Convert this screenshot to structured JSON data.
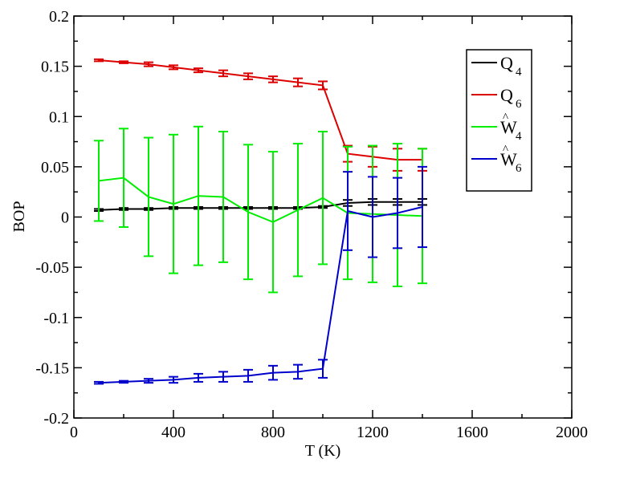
{
  "chart_data": {
    "type": "line",
    "xlabel": "T (K)",
    "ylabel": "BOP",
    "xlim": [
      0,
      2000
    ],
    "ylim": [
      -0.2,
      0.2
    ],
    "x_ticks": [
      0,
      400,
      800,
      1200,
      1600,
      2000
    ],
    "x_tick_labels": [
      "0",
      "400",
      "800",
      "1200",
      "1600",
      "2000"
    ],
    "y_ticks": [
      -0.2,
      -0.15,
      -0.1,
      -0.05,
      0,
      0.05,
      0.1,
      0.15,
      0.2
    ],
    "y_tick_labels": [
      "-0.2",
      "-0.15",
      "-0.1",
      "-0.05",
      "0",
      "0.05",
      "0.1",
      "0.15",
      "0.2"
    ],
    "grid": false,
    "legend_position": "top-right",
    "x": [
      100,
      200,
      300,
      400,
      500,
      600,
      700,
      800,
      900,
      1000,
      1100,
      1200,
      1300,
      1400
    ],
    "series": [
      {
        "name": "Q",
        "subscript": "4",
        "hat": false,
        "color": "#000000",
        "values": [
          0.007,
          0.008,
          0.008,
          0.009,
          0.009,
          0.009,
          0.009,
          0.009,
          0.009,
          0.01,
          0.014,
          0.015,
          0.015,
          0.015
        ],
        "errors": [
          0.001,
          0.001,
          0.001,
          0.001,
          0.001,
          0.001,
          0.001,
          0.001,
          0.001,
          0.001,
          0.003,
          0.003,
          0.003,
          0.003
        ]
      },
      {
        "name": "Q",
        "subscript": "6",
        "hat": false,
        "color": "#dd0000",
        "values": [
          0.156,
          0.154,
          0.152,
          0.149,
          0.146,
          0.143,
          0.14,
          0.137,
          0.134,
          0.131,
          0.063,
          0.06,
          0.057,
          0.057
        ],
        "errors": [
          0.001,
          0.001,
          0.002,
          0.002,
          0.002,
          0.003,
          0.003,
          0.003,
          0.004,
          0.004,
          0.008,
          0.01,
          0.011,
          0.011
        ]
      },
      {
        "name": "W",
        "subscript": "4",
        "hat": true,
        "color": "#00ee00",
        "values": [
          0.036,
          0.039,
          0.02,
          0.013,
          0.021,
          0.02,
          0.005,
          -0.005,
          0.007,
          0.019,
          0.004,
          0.003,
          0.002,
          0.001
        ],
        "errors": [
          0.04,
          0.049,
          0.059,
          0.069,
          0.069,
          0.065,
          0.067,
          0.07,
          0.066,
          0.066,
          0.066,
          0.068,
          0.071,
          0.067
        ]
      },
      {
        "name": "W",
        "subscript": "6",
        "hat": true,
        "color": "#0000cc",
        "values": [
          -0.165,
          -0.164,
          -0.163,
          -0.162,
          -0.16,
          -0.159,
          -0.158,
          -0.155,
          -0.154,
          -0.151,
          0.006,
          0.0,
          0.004,
          0.01
        ],
        "errors": [
          0.001,
          0.001,
          0.002,
          0.003,
          0.004,
          0.005,
          0.006,
          0.007,
          0.007,
          0.009,
          0.039,
          0.04,
          0.035,
          0.04
        ]
      }
    ]
  }
}
